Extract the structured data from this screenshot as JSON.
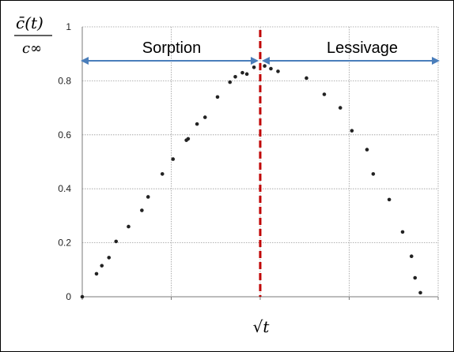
{
  "chart_data": {
    "type": "scatter",
    "title": "",
    "ylabel_top": "c̄(t)",
    "ylabel_bottom": "c∞",
    "xlabel": "√t",
    "ylim": [
      0,
      1
    ],
    "yticks": [
      "0",
      "0.2",
      "0.4",
      "0.6",
      "0.8",
      "1"
    ],
    "xlim": [
      0,
      4
    ],
    "grid": true,
    "regions": [
      {
        "label": "Sorption",
        "from": 0.0,
        "to": 2.0
      },
      {
        "label": "Lessivage",
        "from": 2.0,
        "to": 4.0
      }
    ],
    "divider_x": 2.0,
    "divider_color": "#c00000",
    "arrow_color": "#4a7ebb",
    "point_color": "#222222",
    "points": [
      {
        "x": 0.0,
        "y": 0.0
      },
      {
        "x": 0.16,
        "y": 0.085
      },
      {
        "x": 0.22,
        "y": 0.115
      },
      {
        "x": 0.3,
        "y": 0.145
      },
      {
        "x": 0.38,
        "y": 0.205
      },
      {
        "x": 0.52,
        "y": 0.26
      },
      {
        "x": 0.67,
        "y": 0.32
      },
      {
        "x": 0.74,
        "y": 0.37
      },
      {
        "x": 0.9,
        "y": 0.455
      },
      {
        "x": 1.02,
        "y": 0.51
      },
      {
        "x": 1.17,
        "y": 0.58
      },
      {
        "x": 1.19,
        "y": 0.585
      },
      {
        "x": 1.29,
        "y": 0.64
      },
      {
        "x": 1.38,
        "y": 0.665
      },
      {
        "x": 1.52,
        "y": 0.74
      },
      {
        "x": 1.66,
        "y": 0.795
      },
      {
        "x": 1.72,
        "y": 0.815
      },
      {
        "x": 1.8,
        "y": 0.83
      },
      {
        "x": 1.85,
        "y": 0.825
      },
      {
        "x": 1.93,
        "y": 0.85
      },
      {
        "x": 2.05,
        "y": 0.855
      },
      {
        "x": 2.12,
        "y": 0.845
      },
      {
        "x": 2.2,
        "y": 0.835
      },
      {
        "x": 2.52,
        "y": 0.81
      },
      {
        "x": 2.72,
        "y": 0.75
      },
      {
        "x": 2.9,
        "y": 0.7
      },
      {
        "x": 3.03,
        "y": 0.615
      },
      {
        "x": 3.2,
        "y": 0.545
      },
      {
        "x": 3.27,
        "y": 0.455
      },
      {
        "x": 3.45,
        "y": 0.36
      },
      {
        "x": 3.6,
        "y": 0.24
      },
      {
        "x": 3.7,
        "y": 0.15
      },
      {
        "x": 3.74,
        "y": 0.07
      },
      {
        "x": 3.8,
        "y": 0.015
      }
    ]
  }
}
